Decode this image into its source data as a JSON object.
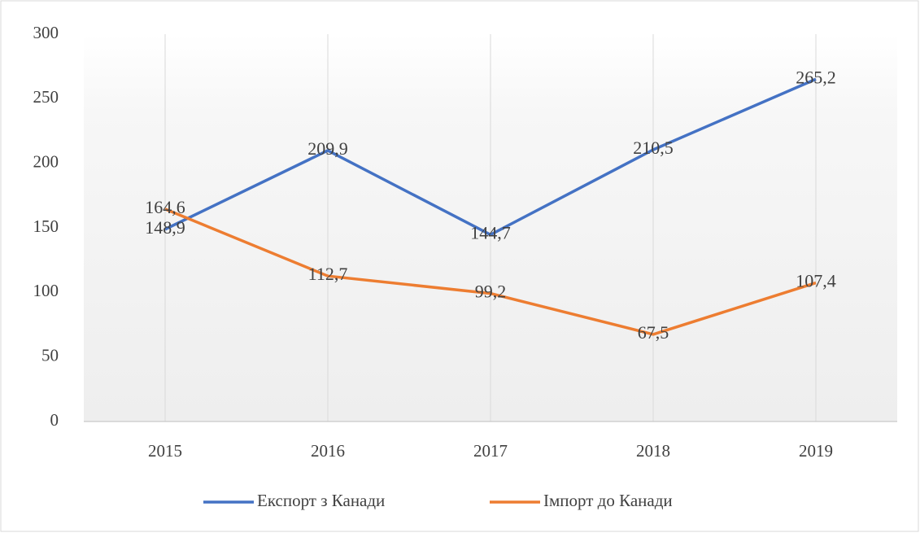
{
  "chart_data": {
    "type": "line",
    "categories": [
      "2015",
      "2016",
      "2017",
      "2018",
      "2019"
    ],
    "series": [
      {
        "name": "Експорт з Канади",
        "color": "#4472c4",
        "values": [
          148.9,
          209.9,
          144.7,
          210.5,
          265.2
        ],
        "value_labels": [
          "148,9",
          "209,9",
          "144,7",
          "210,5",
          "265,2"
        ]
      },
      {
        "name": "Імпорт до Канади",
        "color": "#ed7d31",
        "values": [
          164.6,
          112.7,
          99.2,
          67.5,
          107.4
        ],
        "value_labels": [
          "164,6",
          "112,7",
          "99,2",
          "67,5",
          "107,4"
        ]
      }
    ],
    "ylim": [
      0,
      300
    ],
    "yticks": [
      0,
      50,
      100,
      150,
      200,
      250,
      300
    ],
    "grid": true,
    "legend": "bottom"
  }
}
